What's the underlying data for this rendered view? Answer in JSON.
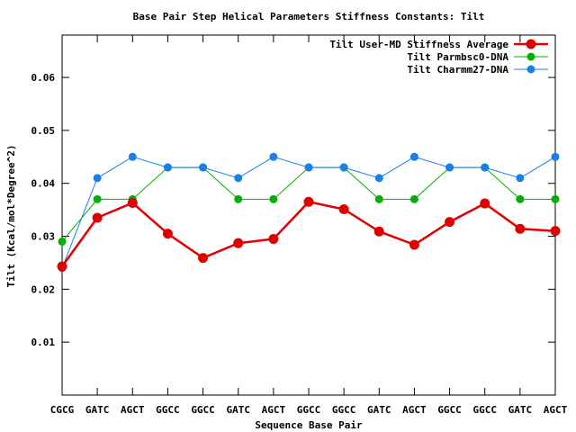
{
  "chart_data": {
    "type": "line",
    "title": "Base Pair Step Helical Parameters Stiffness Constants: Tilt",
    "xlabel": "Sequence Base Pair",
    "ylabel": "Tilt (Kcal/mol*Degree^2)",
    "categories": [
      "CGCG",
      "GATC",
      "AGCT",
      "GGCC",
      "GGCC",
      "GATC",
      "AGCT",
      "GGCC",
      "GGCC",
      "GATC",
      "AGCT",
      "GGCC",
      "GGCC",
      "GATC",
      "AGCT"
    ],
    "ylim": [
      0.0,
      0.068
    ],
    "yticks": [
      0.01,
      0.02,
      0.03,
      0.04,
      0.05,
      0.06
    ],
    "ytick_labels": [
      "0.01",
      "0.02",
      "0.03",
      "0.04",
      "0.05",
      "0.06"
    ],
    "legend_position": "top-right",
    "grid": false,
    "series": [
      {
        "name": "Tilt User-MD Stiffness Average",
        "color": "#e00000",
        "values": [
          0.0243,
          0.0335,
          0.0363,
          0.0305,
          0.0259,
          0.0287,
          0.0295,
          0.0365,
          0.0351,
          0.0309,
          0.0284,
          0.0327,
          0.0362,
          0.0314,
          0.031
        ]
      },
      {
        "name": "Tilt Parmbsc0-DNA",
        "color": "#00b000",
        "values": [
          0.029,
          0.037,
          0.037,
          0.043,
          0.043,
          0.037,
          0.037,
          0.043,
          0.043,
          0.037,
          0.037,
          0.043,
          0.043,
          0.037,
          0.037
        ]
      },
      {
        "name": "Tilt Charmm27-DNA",
        "color": "#1a80e6",
        "values": [
          0.024,
          0.041,
          0.045,
          0.043,
          0.043,
          0.041,
          0.045,
          0.043,
          0.043,
          0.041,
          0.045,
          0.043,
          0.043,
          0.041,
          0.045
        ]
      }
    ]
  }
}
